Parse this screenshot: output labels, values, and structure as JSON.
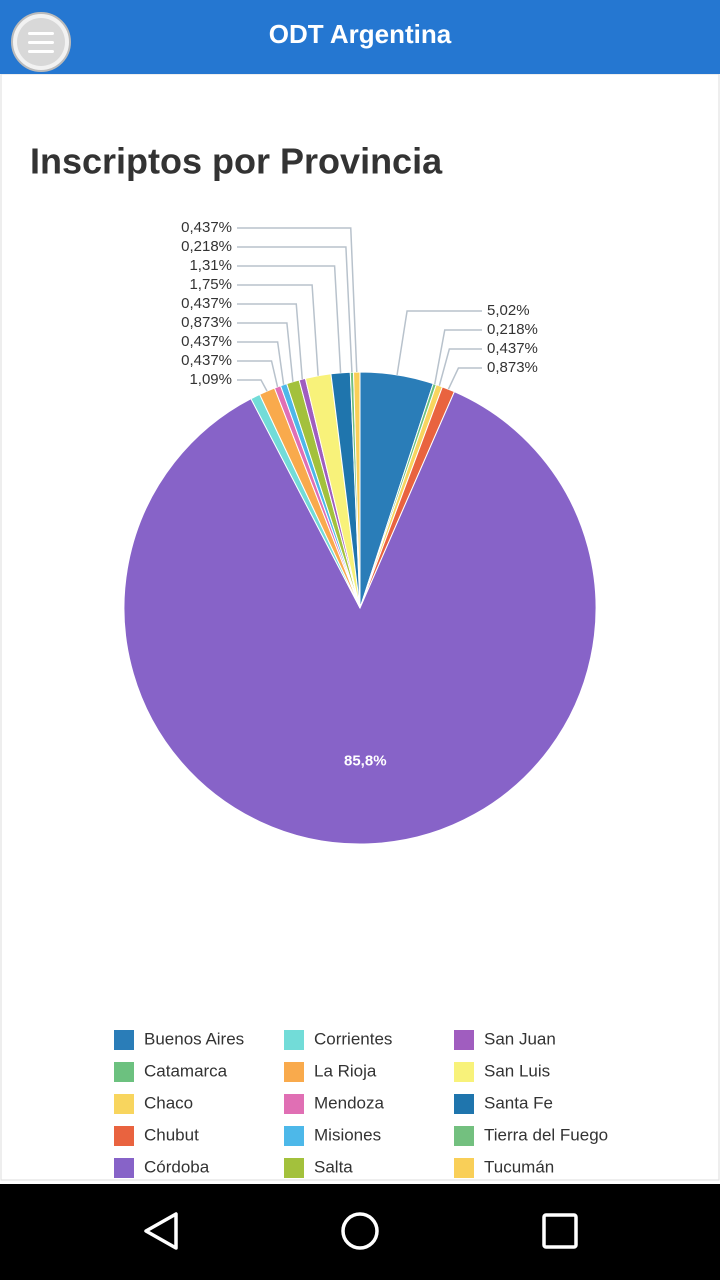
{
  "header": {
    "title": "ODT Argentina"
  },
  "chart_data": {
    "type": "pie",
    "title": "Inscriptos por Provincia",
    "categories": [
      "Buenos Aires",
      "Catamarca",
      "Chaco",
      "Chubut",
      "Córdoba",
      "Corrientes",
      "La Rioja",
      "Mendoza",
      "Misiones",
      "Salta",
      "San Juan",
      "San Luis",
      "Santa Fe",
      "Tierra del Fuego",
      "Tucumán"
    ],
    "values": [
      5.02,
      0.218,
      0.437,
      0.873,
      85.8,
      0.655,
      1.09,
      0.437,
      0.437,
      0.873,
      0.437,
      1.75,
      1.31,
      0.218,
      0.437
    ],
    "value_labels": [
      "5,02%",
      "0,218%",
      "0,437%",
      "0,873%",
      "85,8%",
      null,
      "1,09%",
      "0,437%",
      "0,437%",
      "0,873%",
      "0,437%",
      "1,75%",
      "1,31%",
      "0,218%",
      "0,437%"
    ],
    "colors": [
      "#2a7db8",
      "#6cc17f",
      "#f8d55e",
      "#e9633f",
      "#8763c8",
      "#72dcd8",
      "#f9aa4c",
      "#e06fb4",
      "#4db8e9",
      "#a3c13c",
      "#a05dbf",
      "#f8f27a",
      "#1f75ad",
      "#73c07f",
      "#f9cf58"
    ]
  }
}
